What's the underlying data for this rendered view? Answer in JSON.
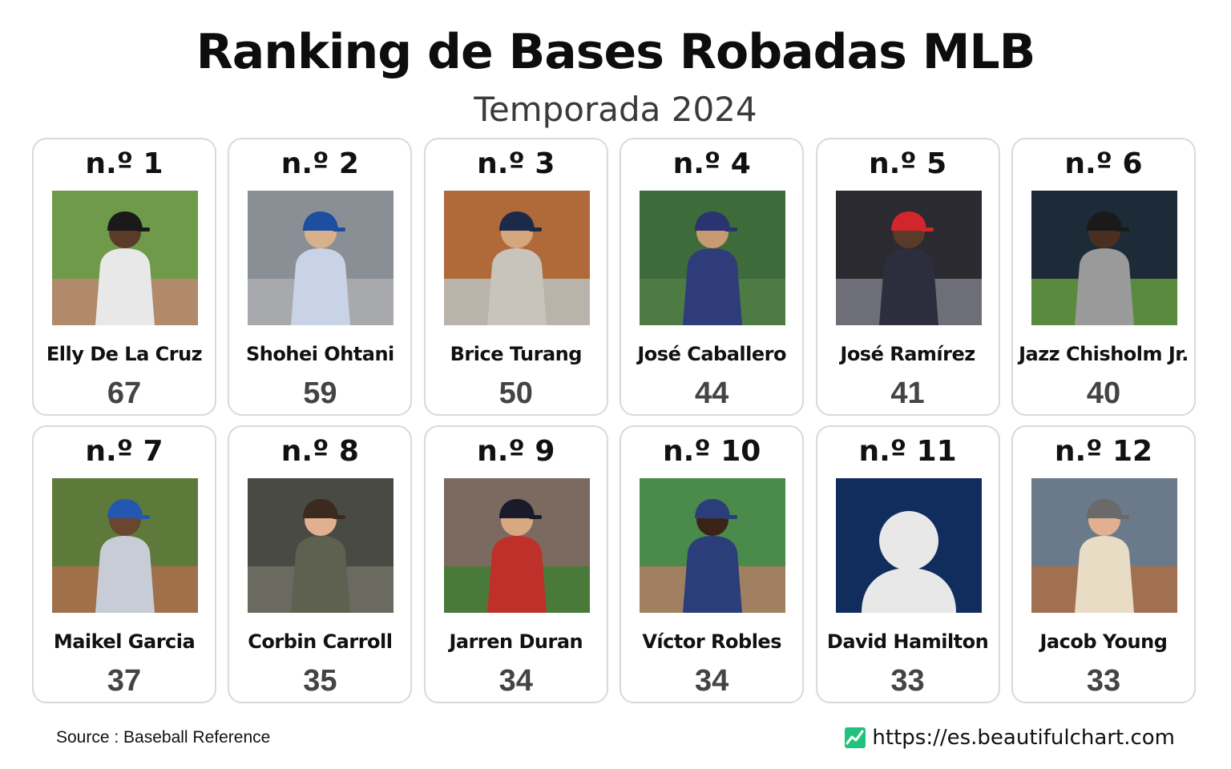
{
  "title": "Ranking de Bases Robadas MLB",
  "subtitle": "Temporada 2024",
  "chart_data": {
    "type": "table",
    "title": "Ranking de Bases Robadas MLB",
    "subtitle": "Temporada 2024",
    "categories": [
      "Elly De La Cruz",
      "Shohei Ohtani",
      "Brice Turang",
      "José Caballero",
      "José Ramírez",
      "Jazz Chisholm Jr.",
      "Maikel Garcia",
      "Corbin Carroll",
      "Jarren Duran",
      "Víctor Robles",
      "David Hamilton",
      "Jacob Young"
    ],
    "values": [
      67,
      59,
      50,
      44,
      41,
      40,
      37,
      35,
      34,
      34,
      33,
      33
    ],
    "ranks": [
      "n.º 1",
      "n.º 2",
      "n.º 3",
      "n.º 4",
      "n.º 5",
      "n.º 6",
      "n.º 7",
      "n.º 8",
      "n.º 9",
      "n.º 10",
      "n.º 11",
      "n.º 12"
    ]
  },
  "photos": [
    {
      "bg": "#6f9a4a",
      "ground": "#b08a6a",
      "jersey": "#e8e8e8",
      "cap": "#1a1a1a",
      "skin": "#5a3b2a"
    },
    {
      "bg": "#8a8f96",
      "ground": "#a7a9ad",
      "jersey": "#c9d3e6",
      "cap": "#1d4ea0",
      "skin": "#d9b08c"
    },
    {
      "bg": "#b06a3a",
      "ground": "#b9b3aa",
      "jersey": "#c8c4bc",
      "cap": "#1c2a4a",
      "skin": "#d6a77f"
    },
    {
      "bg": "#3e6b3a",
      "ground": "#4e7a44",
      "jersey": "#2f3c7a",
      "cap": "#2a3470",
      "skin": "#c99a72"
    },
    {
      "bg": "#2a2a30",
      "ground": "#6e6e78",
      "jersey": "#2c2e3e",
      "cap": "#d0262c",
      "skin": "#5a3a28"
    },
    {
      "bg": "#1d2a38",
      "ground": "#5a8a3e",
      "jersey": "#9a9a9a",
      "cap": "#1a1a1a",
      "skin": "#4a2f20"
    },
    {
      "bg": "#5e7a3a",
      "ground": "#a0704a",
      "jersey": "#c8ccd6",
      "cap": "#2357b0",
      "skin": "#6a4530"
    },
    {
      "bg": "#4a4a44",
      "ground": "#6a6a60",
      "jersey": "#5e6050",
      "cap": "#3a2a20",
      "skin": "#e0b090"
    },
    {
      "bg": "#7a6a60",
      "ground": "#4a7a3a",
      "jersey": "#c0302a",
      "cap": "#1a1a2a",
      "skin": "#d8a880"
    },
    {
      "bg": "#4a8a4a",
      "ground": "#a08060",
      "jersey": "#2c3e7a",
      "cap": "#2c3e7a",
      "skin": "#3a2418"
    },
    {
      "bg": "#112d5e",
      "placeholder": true,
      "silhouette": "#e8e8e8"
    },
    {
      "bg": "#6a7a8a",
      "ground": "#a07050",
      "jersey": "#e8dcc4",
      "cap": "#6a6a6a",
      "skin": "#e0b090"
    }
  ],
  "footer": {
    "source": "Source : Baseball Reference",
    "url": "https://es.beautifulchart.com",
    "icon": "line-chart-icon",
    "icon_color": "#22c27a"
  }
}
